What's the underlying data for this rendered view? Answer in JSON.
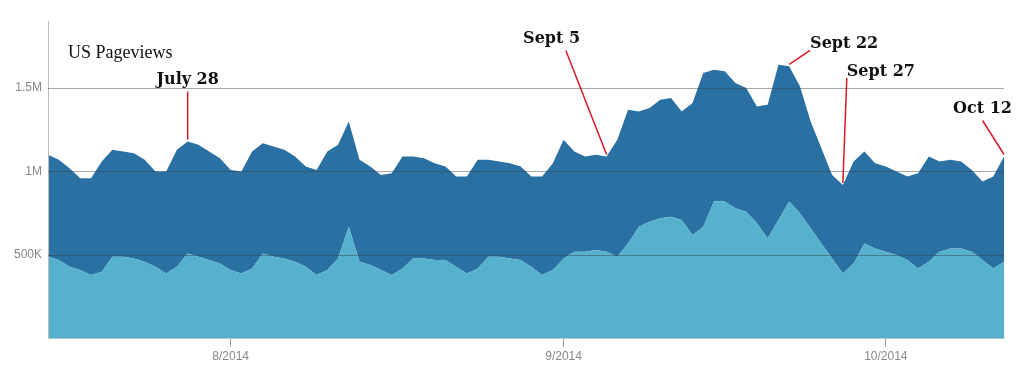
{
  "chart_data": {
    "type": "area",
    "title": "US Pageviews",
    "stacked": true,
    "grid": "y",
    "x": [
      "2014-07-15",
      "2014-07-16",
      "2014-07-17",
      "2014-07-18",
      "2014-07-19",
      "2014-07-20",
      "2014-07-21",
      "2014-07-22",
      "2014-07-23",
      "2014-07-24",
      "2014-07-25",
      "2014-07-26",
      "2014-07-27",
      "2014-07-28",
      "2014-07-29",
      "2014-07-30",
      "2014-07-31",
      "2014-08-01",
      "2014-08-02",
      "2014-08-03",
      "2014-08-04",
      "2014-08-05",
      "2014-08-06",
      "2014-08-07",
      "2014-08-08",
      "2014-08-09",
      "2014-08-10",
      "2014-08-11",
      "2014-08-12",
      "2014-08-13",
      "2014-08-14",
      "2014-08-15",
      "2014-08-16",
      "2014-08-17",
      "2014-08-18",
      "2014-08-19",
      "2014-08-20",
      "2014-08-21",
      "2014-08-22",
      "2014-08-23",
      "2014-08-24",
      "2014-08-25",
      "2014-08-26",
      "2014-08-27",
      "2014-08-28",
      "2014-08-29",
      "2014-08-30",
      "2014-08-31",
      "2014-09-01",
      "2014-09-02",
      "2014-09-03",
      "2014-09-04",
      "2014-09-05",
      "2014-09-06",
      "2014-09-07",
      "2014-09-08",
      "2014-09-09",
      "2014-09-10",
      "2014-09-11",
      "2014-09-12",
      "2014-09-13",
      "2014-09-14",
      "2014-09-15",
      "2014-09-16",
      "2014-09-17",
      "2014-09-18",
      "2014-09-19",
      "2014-09-20",
      "2014-09-21",
      "2014-09-22",
      "2014-09-23",
      "2014-09-24",
      "2014-09-25",
      "2014-09-26",
      "2014-09-27",
      "2014-09-28",
      "2014-09-29",
      "2014-09-30",
      "2014-10-01",
      "2014-10-02",
      "2014-10-03",
      "2014-10-04",
      "2014-10-05",
      "2014-10-06",
      "2014-10-07",
      "2014-10-08",
      "2014-10-09",
      "2014-10-10",
      "2014-10-11",
      "2014-10-12"
    ],
    "series": [
      {
        "color": "#55b1cc",
        "values": [
          490000,
          470000,
          430000,
          410000,
          380000,
          400000,
          490000,
          490000,
          480000,
          460000,
          430000,
          390000,
          430000,
          510000,
          490000,
          470000,
          450000,
          410000,
          390000,
          420000,
          510000,
          490000,
          480000,
          460000,
          430000,
          380000,
          410000,
          480000,
          670000,
          460000,
          440000,
          410000,
          380000,
          420000,
          480000,
          480000,
          470000,
          470000,
          430000,
          390000,
          420000,
          490000,
          490000,
          480000,
          470000,
          430000,
          380000,
          410000,
          480000,
          520000,
          520000,
          530000,
          520000,
          490000,
          570000,
          670000,
          700000,
          720000,
          730000,
          710000,
          620000,
          670000,
          820000,
          820000,
          780000,
          760000,
          690000,
          600000,
          710000,
          820000,
          750000,
          660000,
          570000,
          480000,
          390000,
          450000,
          570000,
          540000,
          520000,
          500000,
          470000,
          420000,
          460000,
          520000,
          540000,
          540000,
          520000,
          470000,
          420000,
          460000
        ]
      },
      {
        "color": "#2a70a2",
        "values": [
          610000,
          600000,
          590000,
          550000,
          580000,
          660000,
          640000,
          630000,
          630000,
          610000,
          570000,
          610000,
          700000,
          670000,
          670000,
          650000,
          630000,
          600000,
          610000,
          700000,
          660000,
          660000,
          650000,
          630000,
          600000,
          630000,
          710000,
          680000,
          630000,
          610000,
          590000,
          570000,
          610000,
          670000,
          610000,
          600000,
          580000,
          560000,
          540000,
          580000,
          650000,
          580000,
          570000,
          570000,
          560000,
          540000,
          590000,
          640000,
          710000,
          600000,
          570000,
          570000,
          570000,
          700000,
          800000,
          690000,
          680000,
          710000,
          710000,
          650000,
          790000,
          920000,
          790000,
          780000,
          750000,
          740000,
          700000,
          800000,
          930000,
          810000,
          760000,
          640000,
          570000,
          500000,
          530000,
          610000,
          550000,
          510000,
          510000,
          500000,
          500000,
          570000,
          630000,
          540000,
          530000,
          520000,
          490000,
          470000,
          550000,
          630000
        ]
      }
    ],
    "xlim": [
      "2014-07-15",
      "2014-10-12"
    ],
    "xticks": [
      {
        "value": "2014-08-01",
        "label": "8/2014"
      },
      {
        "value": "2014-09-01",
        "label": "9/2014"
      },
      {
        "value": "2014-10-01",
        "label": "10/2014"
      }
    ],
    "ylim": [
      0,
      1900000
    ],
    "yticks": [
      {
        "value": 500000,
        "label": "500K"
      },
      {
        "value": 1000000,
        "label": "1M"
      },
      {
        "value": 1500000,
        "label": "1.5M"
      }
    ],
    "annotations": [
      {
        "text": "July 28",
        "x": "2014-07-28",
        "y": 1180000
      },
      {
        "text": "Sept 5",
        "x": "2014-09-05",
        "y": 1090000
      },
      {
        "text": "Sept 22",
        "x": "2014-09-22",
        "y": 1630000
      },
      {
        "text": "Sept 27",
        "x": "2014-09-27",
        "y": 920000
      },
      {
        "text": "Oct 12",
        "x": "2014-10-12",
        "y": 1090000
      }
    ]
  }
}
